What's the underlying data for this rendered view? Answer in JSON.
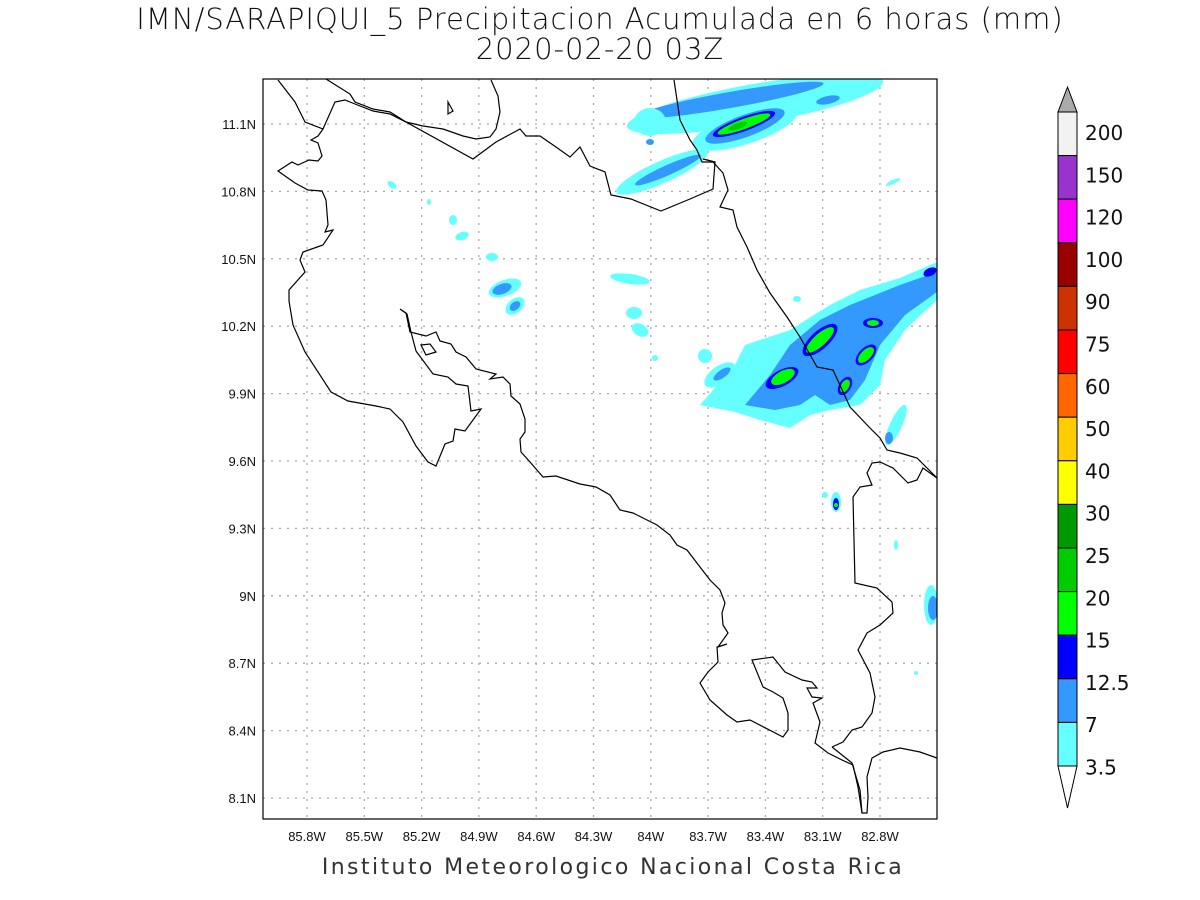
{
  "title": {
    "line1": "IMN/SARAPIQUI_5 Precipitacion Acumulada en 6 horas (mm)",
    "line2": "2020-02-20 03Z"
  },
  "footer": "Instituto Meteorologico Nacional Costa Rica",
  "map": {
    "lat_labels": [
      "11.1N",
      "10.8N",
      "10.5N",
      "10.2N",
      "9.9N",
      "9.6N",
      "9.3N",
      "9N",
      "8.7N",
      "8.4N",
      "8.1N"
    ],
    "lon_labels": [
      "85.8W",
      "85.5W",
      "85.2W",
      "84.9W",
      "84.6W",
      "84.3W",
      "84W",
      "83.7W",
      "83.4W",
      "83.1W",
      "82.8W"
    ]
  },
  "colorbar": {
    "labels": [
      "200",
      "150",
      "120",
      "100",
      "90",
      "75",
      "60",
      "50",
      "40",
      "30",
      "25",
      "20",
      "15",
      "12.5",
      "7",
      "3.5"
    ],
    "colors": [
      "#f2f2f2",
      "#9933cc",
      "#ff00ff",
      "#990000",
      "#cc3300",
      "#ff0000",
      "#ff6600",
      "#ffcc00",
      "#ffff00",
      "#009900",
      "#00cc00",
      "#00ff00",
      "#0000ff",
      "#3399ff",
      "#66ffff"
    ],
    "over_color": "#aaaaaa",
    "under_color": "#ffffff"
  }
}
